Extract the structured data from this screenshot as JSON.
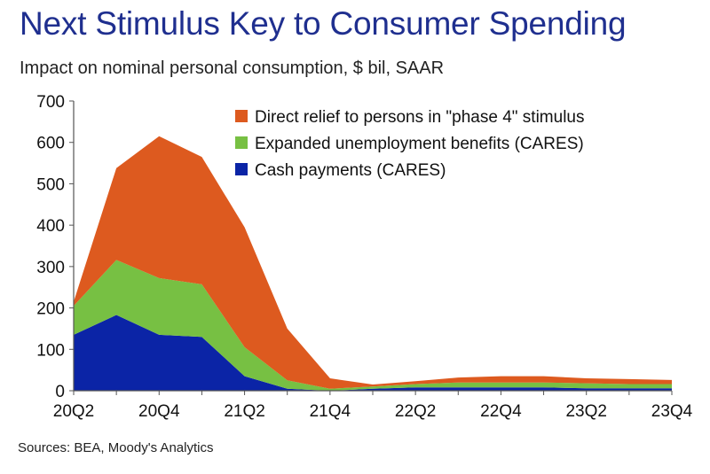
{
  "title": "Next Stimulus Key to Consumer Spending",
  "subtitle": "Impact on nominal personal consumption, $ bil, SAAR",
  "source": "Sources: BEA, Moody's Analytics",
  "chart_data": {
    "type": "area",
    "stacked": true,
    "x": [
      "20Q2",
      "20Q3",
      "20Q4",
      "21Q1",
      "21Q2",
      "21Q3",
      "21Q4",
      "22Q1",
      "22Q2",
      "22Q3",
      "22Q4",
      "23Q1",
      "23Q2",
      "23Q3",
      "23Q4"
    ],
    "x_tick_labels": [
      "20Q2",
      "20Q4",
      "21Q2",
      "21Q4",
      "22Q2",
      "22Q4",
      "23Q2",
      "23Q4"
    ],
    "y_tick_labels": [
      "0",
      "100",
      "200",
      "300",
      "400",
      "500",
      "600",
      "700"
    ],
    "ylim": [
      0,
      700
    ],
    "grid": false,
    "legend_position": "top-right",
    "series": [
      {
        "name": "Cash payments (CARES)",
        "color": "#0b24a6",
        "values": [
          135,
          183,
          135,
          130,
          35,
          5,
          0,
          5,
          8,
          8,
          8,
          8,
          6,
          6,
          6
        ]
      },
      {
        "name": "Expanded unemployment benefits (CARES)",
        "color": "#77c043",
        "values": [
          70,
          133,
          137,
          127,
          70,
          20,
          5,
          5,
          8,
          12,
          12,
          12,
          12,
          10,
          10
        ]
      },
      {
        "name": "Direct relief to persons in \"phase 4\" stimulus",
        "color": "#dd5a1f",
        "values": [
          10,
          222,
          343,
          308,
          290,
          125,
          25,
          5,
          7,
          12,
          15,
          15,
          12,
          12,
          10
        ]
      }
    ]
  }
}
